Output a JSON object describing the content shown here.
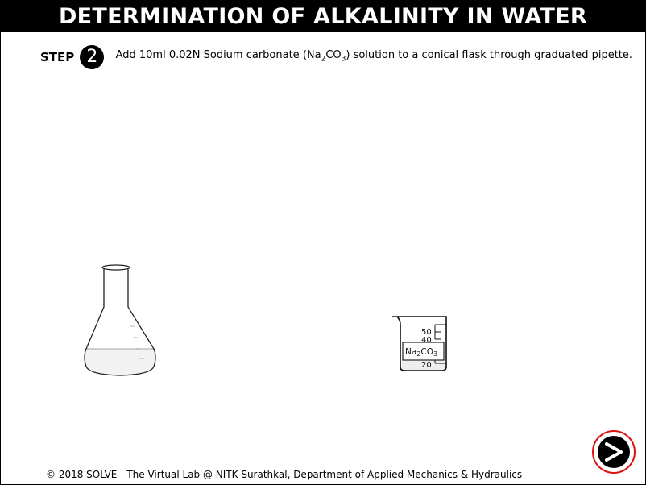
{
  "header": {
    "title": "DETERMINATION OF ALKALINITY IN WATER"
  },
  "step": {
    "label": "STEP",
    "number": "2",
    "text_before": "Add 10ml 0.02N Sodium carbonate (Na",
    "sub1": "2",
    "text_mid": "CO",
    "sub2": "3",
    "text_after": ") solution to a conical flask through graduated pipette."
  },
  "beaker": {
    "marks": [
      "50",
      "40",
      "20"
    ],
    "label_main": "Na",
    "label_sub1": "2",
    "label_mid": "CO",
    "label_sub2": "3"
  },
  "footer": {
    "text": "© 2018 SOLVE - The Virtual Lab @ NITK Surathkal, Department of Applied Mechanics & Hydraulics"
  },
  "nav": {
    "next_icon": "arrow-right-icon",
    "accent": "#d11111"
  }
}
